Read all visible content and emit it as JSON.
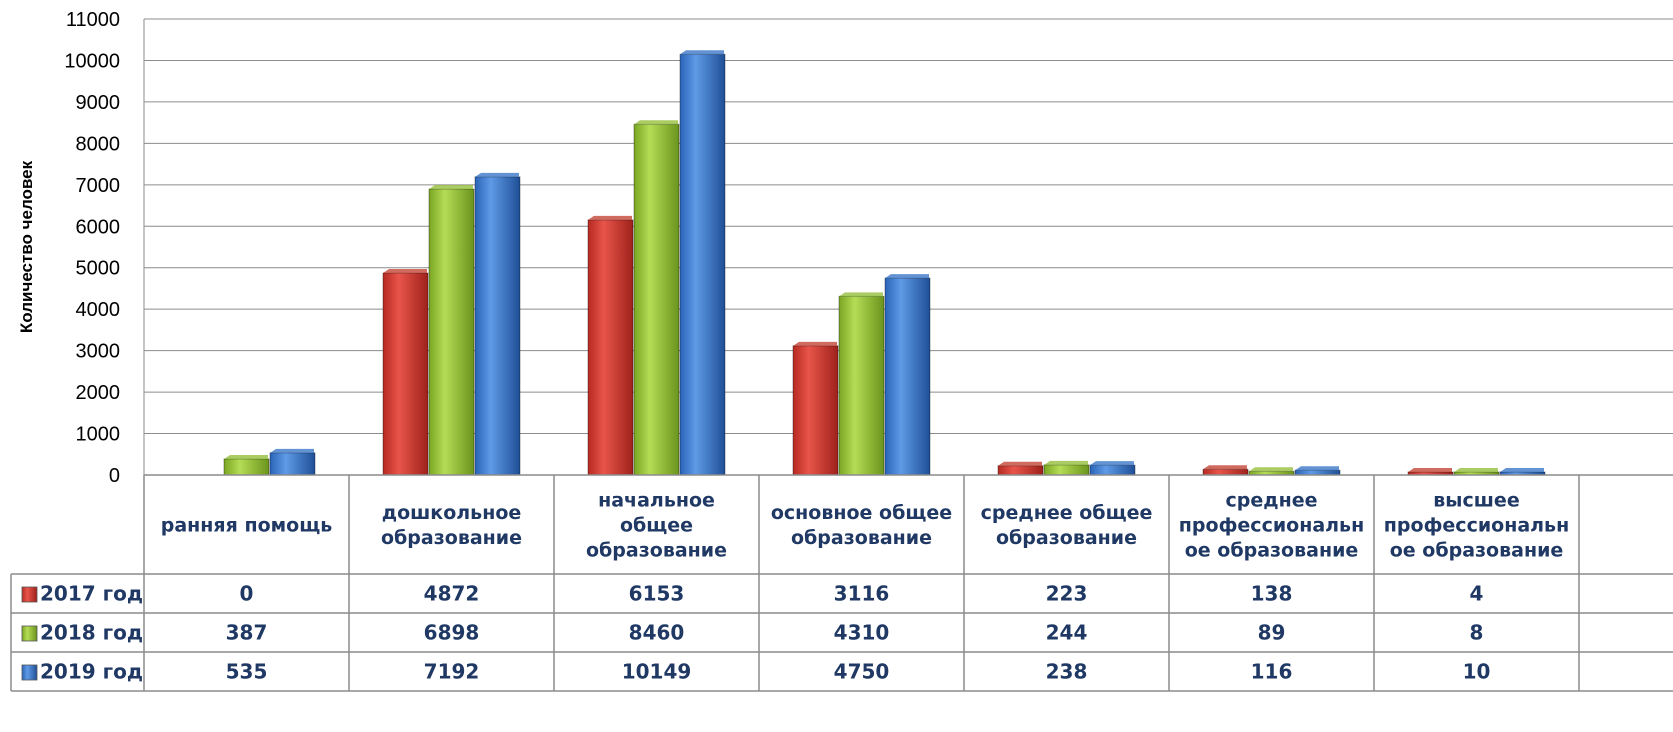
{
  "chart_data": {
    "type": "bar",
    "ylabel": "Количество человек",
    "ylim": [
      0,
      11000
    ],
    "yticks": [
      0,
      1000,
      2000,
      3000,
      4000,
      5000,
      6000,
      7000,
      8000,
      9000,
      10000,
      11000
    ],
    "grid": true,
    "legend": "data-table",
    "categories": [
      [
        "ранняя помощь"
      ],
      [
        "дошкольное",
        "образование"
      ],
      [
        "начальное",
        "общее",
        "образование"
      ],
      [
        "основное общее",
        "образование"
      ],
      [
        "среднее общее",
        "образование"
      ],
      [
        "среднее",
        "профессиональн",
        "ое образование"
      ],
      [
        "высшее",
        "профессиональн",
        "ое образование"
      ]
    ],
    "series": [
      {
        "name": "2017 год",
        "color": "#c0392b",
        "values": [
          0,
          4872,
          6153,
          3116,
          223,
          138,
          4
        ]
      },
      {
        "name": "2018 год",
        "color": "#8dbb2f",
        "values": [
          387,
          6898,
          8460,
          4310,
          244,
          89,
          8
        ]
      },
      {
        "name": "2019 год",
        "color": "#2f6fc4",
        "values": [
          535,
          7192,
          10149,
          4750,
          238,
          116,
          10
        ]
      }
    ]
  }
}
